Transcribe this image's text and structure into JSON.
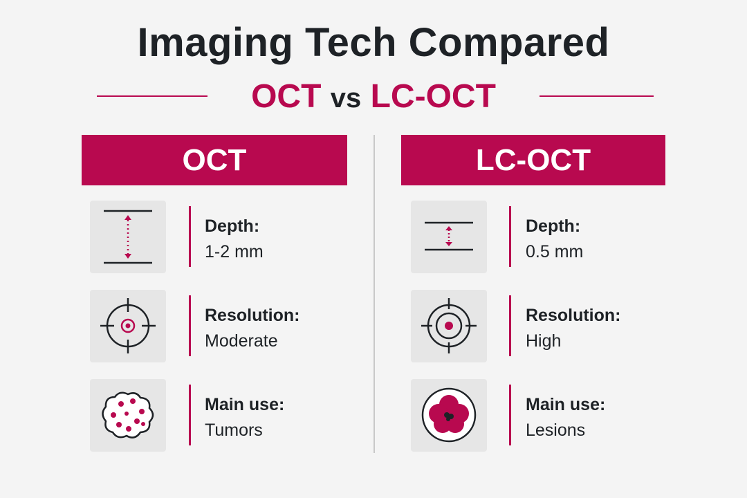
{
  "title": "Imaging Tech Compared",
  "subtitle": {
    "left": "OCT",
    "middle": "vs",
    "right": "LC-OCT"
  },
  "columns": [
    {
      "header": "OCT",
      "rows": [
        {
          "label": "Depth:",
          "value": "1-2 mm"
        },
        {
          "label": "Resolution:",
          "value": "Moderate"
        },
        {
          "label": "Main use:",
          "value": "Tumors"
        }
      ]
    },
    {
      "header": "LC-OCT",
      "rows": [
        {
          "label": "Depth:",
          "value": "0.5 mm"
        },
        {
          "label": "Resolution:",
          "value": "High"
        },
        {
          "label": "Main use:",
          "value": "Lesions"
        }
      ]
    }
  ]
}
